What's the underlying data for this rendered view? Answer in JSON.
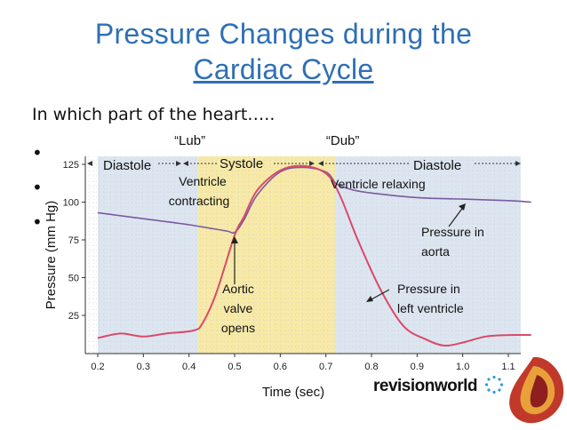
{
  "slide": {
    "title_line1": "Pressure Changes during the",
    "title_line2": "Cardiac Cycle",
    "question": "In which part of the heart…..",
    "bullets": [
      "•",
      "•",
      "•"
    ]
  },
  "logo": {
    "text_a": "revision",
    "text_b": "world"
  },
  "chart_data": {
    "type": "line",
    "xlabel": "Time (sec)",
    "ylabel": "Pressure (mm Hg)",
    "xlim": [
      0.2,
      1.15
    ],
    "ylim": [
      0,
      130
    ],
    "xticks": [
      0.2,
      0.3,
      0.4,
      0.5,
      0.6,
      0.7,
      0.8,
      0.9,
      1.0,
      1.1
    ],
    "xtick_labels": [
      "0.2",
      "0.3",
      "0.4",
      "0.5",
      "0.6",
      "0.7",
      "0.8",
      "0.9",
      "1.0",
      "1.1"
    ],
    "yticks": [
      25,
      50,
      75,
      100,
      125
    ],
    "ytick_labels": [
      "25",
      "50",
      "75",
      "100",
      "125"
    ],
    "grid": true,
    "phases": [
      {
        "name": "Diastole",
        "x_start": 0.2,
        "x_end": 0.42,
        "color": "#dde6f0"
      },
      {
        "name": "Systole",
        "x_start": 0.42,
        "x_end": 0.72,
        "color": "#f8eaa6"
      },
      {
        "name": "Diastole",
        "x_start": 0.72,
        "x_end": 1.15,
        "color": "#dde6f0"
      }
    ],
    "phase_labels": [
      "Diastole",
      "Systole",
      "Diastole"
    ],
    "sound_labels": [
      {
        "text": "“Lub”",
        "x": 0.43
      },
      {
        "text": "“Dub”",
        "x": 0.72
      }
    ],
    "series": [
      {
        "name": "Pressure in aorta",
        "color": "#7a5aa0",
        "points": [
          [
            0.2,
            93
          ],
          [
            0.3,
            89
          ],
          [
            0.4,
            85
          ],
          [
            0.48,
            81
          ],
          [
            0.5,
            80
          ],
          [
            0.52,
            88
          ],
          [
            0.55,
            105
          ],
          [
            0.6,
            120
          ],
          [
            0.65,
            123
          ],
          [
            0.7,
            120
          ],
          [
            0.72,
            113
          ],
          [
            0.73,
            111
          ],
          [
            0.76,
            108
          ],
          [
            0.8,
            106
          ],
          [
            0.9,
            103
          ],
          [
            1.0,
            102
          ],
          [
            1.1,
            101
          ],
          [
            1.15,
            100
          ]
        ]
      },
      {
        "name": "Pressure in left ventricle",
        "color": "#d94a6a",
        "points": [
          [
            0.2,
            10
          ],
          [
            0.25,
            13
          ],
          [
            0.3,
            11
          ],
          [
            0.35,
            13
          ],
          [
            0.41,
            15
          ],
          [
            0.43,
            20
          ],
          [
            0.46,
            40
          ],
          [
            0.5,
            78
          ],
          [
            0.52,
            90
          ],
          [
            0.55,
            108
          ],
          [
            0.6,
            121
          ],
          [
            0.65,
            124
          ],
          [
            0.7,
            119
          ],
          [
            0.73,
            105
          ],
          [
            0.77,
            75
          ],
          [
            0.82,
            42
          ],
          [
            0.87,
            18
          ],
          [
            0.92,
            9
          ],
          [
            0.96,
            5
          ],
          [
            1.0,
            7
          ],
          [
            1.05,
            11
          ],
          [
            1.1,
            12
          ],
          [
            1.15,
            12
          ]
        ]
      }
    ],
    "annotations": [
      "Ventricle contracting",
      "Ventricle relaxing",
      "Aortic valve opens",
      "Pressure in aorta",
      "Pressure in left ventricle"
    ]
  }
}
